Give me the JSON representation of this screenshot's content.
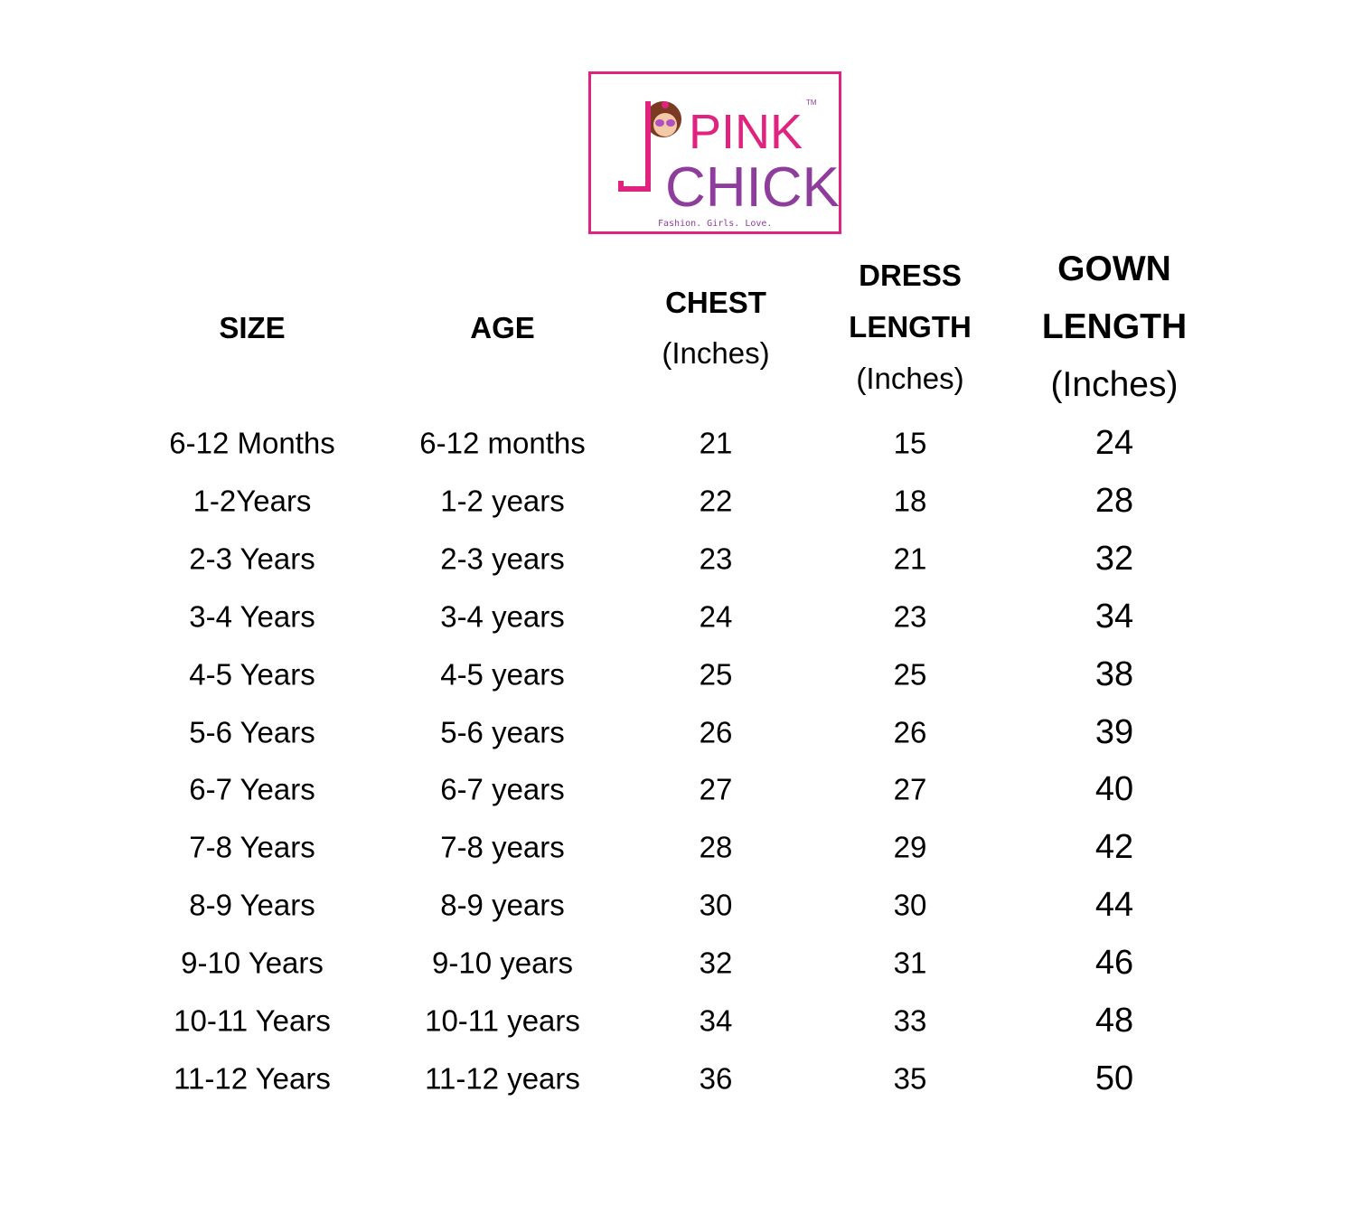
{
  "logo": {
    "brand_top": "PINK",
    "brand_bottom": "CHICK",
    "tagline": "Fashion.  Girls.  Love.",
    "trademark": "TM",
    "colors": {
      "pink": "#e0237f",
      "purple": "#8e3d9c"
    }
  },
  "headers": {
    "size": "SIZE",
    "age": "AGE",
    "chest": [
      "CHEST",
      "(Inches)"
    ],
    "dress": [
      "DRESS",
      "LENGTH",
      "(Inches)"
    ],
    "gown": [
      "GOWN",
      "LENGTH",
      "(Inches)"
    ]
  },
  "rows": [
    {
      "size": "6-12 Months",
      "age": "6-12 months",
      "chest": "21",
      "dress": "15",
      "gown": "24"
    },
    {
      "size": "1-2Years",
      "age": "1-2 years",
      "chest": "22",
      "dress": "18",
      "gown": "28"
    },
    {
      "size": "2-3 Years",
      "age": "2-3 years",
      "chest": "23",
      "dress": "21",
      "gown": "32"
    },
    {
      "size": "3-4 Years",
      "age": "3-4 years",
      "chest": "24",
      "dress": "23",
      "gown": "34"
    },
    {
      "size": "4-5 Years",
      "age": "4-5 years",
      "chest": "25",
      "dress": "25",
      "gown": "38"
    },
    {
      "size": "5-6 Years",
      "age": "5-6 years",
      "chest": "26",
      "dress": "26",
      "gown": "39"
    },
    {
      "size": "6-7 Years",
      "age": "6-7 years",
      "chest": "27",
      "dress": "27",
      "gown": "40"
    },
    {
      "size": "7-8 Years",
      "age": "7-8 years",
      "chest": "28",
      "dress": "29",
      "gown": "42"
    },
    {
      "size": "8-9 Years",
      "age": "8-9 years",
      "chest": "30",
      "dress": "30",
      "gown": "44"
    },
    {
      "size": "9-10 Years",
      "age": "9-10 years",
      "chest": "32",
      "dress": "31",
      "gown": "46"
    },
    {
      "size": "10-11 Years",
      "age": "10-11 years",
      "chest": "34",
      "dress": "33",
      "gown": "48"
    },
    {
      "size": "11-12 Years",
      "age": "11-12 years",
      "chest": "36",
      "dress": "35",
      "gown": "50"
    }
  ]
}
